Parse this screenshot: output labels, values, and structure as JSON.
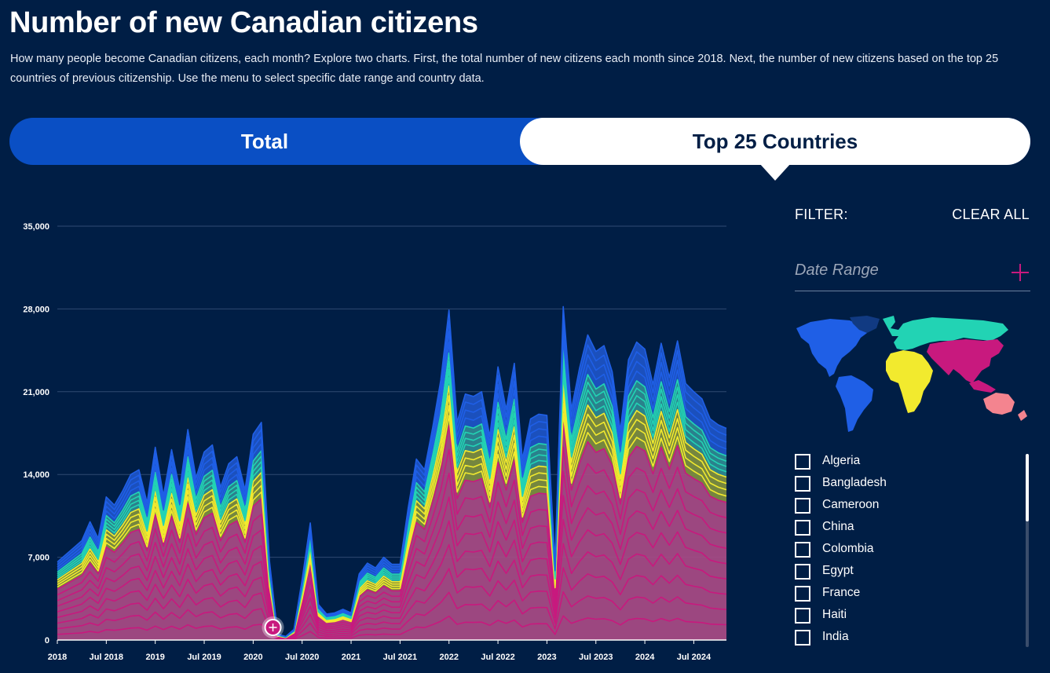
{
  "header": {
    "title": "Number of new Canadian citizens",
    "subtitle": "How many people become Canadian citizens, each month? Explore two charts. First, the total number of new citizens each month since 2018. Next, the number of new citizens based on the top 25 countries of previous citizenship. Use the menu to select specific date range and country data."
  },
  "tabs": {
    "total": "Total",
    "top25": "Top 25 Countries",
    "active": "top25"
  },
  "filter": {
    "label": "FILTER:",
    "clear_all": "CLEAR ALL",
    "date_range": "Date Range",
    "countries": [
      "Algeria",
      "Bangladesh",
      "Cameroon",
      "China",
      "Colombia",
      "Egypt",
      "France",
      "Haiti",
      "India"
    ]
  },
  "map": {
    "regions": [
      {
        "name": "North America",
        "color": "#1f5fe6"
      },
      {
        "name": "Greenland",
        "color": "#113a82"
      },
      {
        "name": "South America",
        "color": "#1f5fe6"
      },
      {
        "name": "Europe / Russia",
        "color": "#22d3b4"
      },
      {
        "name": "Africa",
        "color": "#f2ea2e"
      },
      {
        "name": "Asia",
        "color": "#c8197e"
      },
      {
        "name": "Oceania",
        "color": "#f4848f"
      }
    ]
  },
  "chart_data": {
    "type": "area",
    "title": "Number of new Canadian citizens",
    "stacked": true,
    "ylim": [
      0,
      35000
    ],
    "yticks": [
      "0",
      "7,000",
      "14,000",
      "21,000",
      "28,000",
      "35,000"
    ],
    "yticks_values": [
      0,
      7000,
      14000,
      21000,
      28000,
      35000
    ],
    "xticks": [
      "2018",
      "Jul 2018",
      "2019",
      "Jul 2019",
      "2020",
      "Jul 2020",
      "2021",
      "Jul 2021",
      "2022",
      "Jul 2022",
      "2023",
      "Jul 2023",
      "2024",
      "Jul 2024"
    ],
    "xticks_index": [
      0,
      6,
      12,
      18,
      24,
      30,
      36,
      42,
      48,
      54,
      60,
      66,
      72,
      78
    ],
    "months": 83,
    "totals": [
      6600,
      7200,
      7800,
      8400,
      10000,
      8600,
      12100,
      11400,
      12600,
      14000,
      14400,
      11600,
      16300,
      12200,
      16100,
      12700,
      17800,
      13700,
      15900,
      16500,
      12900,
      14900,
      15500,
      12700,
      17400,
      18400,
      6700,
      500,
      300,
      900,
      5100,
      9900,
      3000,
      2200,
      2300,
      2600,
      2300,
      5600,
      6500,
      6100,
      7000,
      6400,
      6400,
      11200,
      15300,
      14400,
      18000,
      22000,
      27900,
      18400,
      20800,
      20600,
      21000,
      17200,
      23100,
      19500,
      23400,
      15300,
      18700,
      19100,
      19000,
      6500,
      28200,
      19500,
      23000,
      25800,
      24400,
      24900,
      22700,
      17700,
      23700,
      25200,
      24600,
      21600,
      25100,
      22200,
      25300,
      21700,
      21000,
      20400,
      18700,
      18200,
      17900
    ],
    "series": [
      {
        "name": "Americas",
        "color": "#1f5fe6",
        "share": 0.13
      },
      {
        "name": "Europe",
        "color": "#22d3b4",
        "share": 0.1
      },
      {
        "name": "Africa",
        "color": "#f2ea2e",
        "share": 0.12
      },
      {
        "name": "Asia",
        "color": "#c8197e",
        "share": 0.65
      }
    ]
  }
}
